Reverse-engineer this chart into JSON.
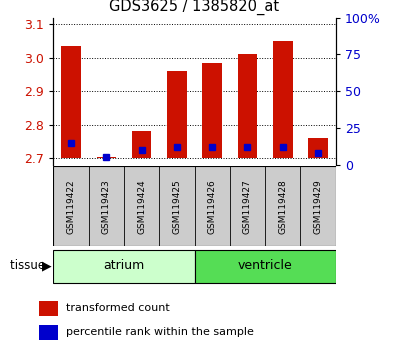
{
  "title": "GDS3625 / 1385820_at",
  "samples": [
    "GSM119422",
    "GSM119423",
    "GSM119424",
    "GSM119425",
    "GSM119426",
    "GSM119427",
    "GSM119428",
    "GSM119429"
  ],
  "transformed_counts": [
    3.035,
    2.703,
    2.78,
    2.96,
    2.985,
    3.01,
    3.05,
    2.76
  ],
  "percentile_ranks": [
    15,
    5,
    10,
    12,
    12,
    12,
    12,
    8
  ],
  "baseline": 2.7,
  "ylim_left": [
    2.68,
    3.12
  ],
  "ylim_right": [
    0,
    100
  ],
  "yticks_left": [
    2.7,
    2.8,
    2.9,
    3.0,
    3.1
  ],
  "yticks_right": [
    0,
    25,
    50,
    75,
    100
  ],
  "bar_color": "#cc1100",
  "percentile_color": "#0000cc",
  "tissue_groups": [
    {
      "label": "atrium",
      "indices": [
        0,
        1,
        2,
        3
      ],
      "color": "#ccffcc"
    },
    {
      "label": "ventricle",
      "indices": [
        4,
        5,
        6,
        7
      ],
      "color": "#55dd55"
    }
  ],
  "tissue_label": "tissue",
  "legend_items": [
    {
      "label": "transformed count",
      "color": "#cc1100"
    },
    {
      "label": "percentile rank within the sample",
      "color": "#0000cc"
    }
  ],
  "background_color": "#ffffff",
  "plot_bg_color": "#ffffff",
  "tick_label_color_left": "#cc1100",
  "tick_label_color_right": "#0000cc",
  "grid_color": "#000000",
  "sample_bg_color": "#cccccc"
}
